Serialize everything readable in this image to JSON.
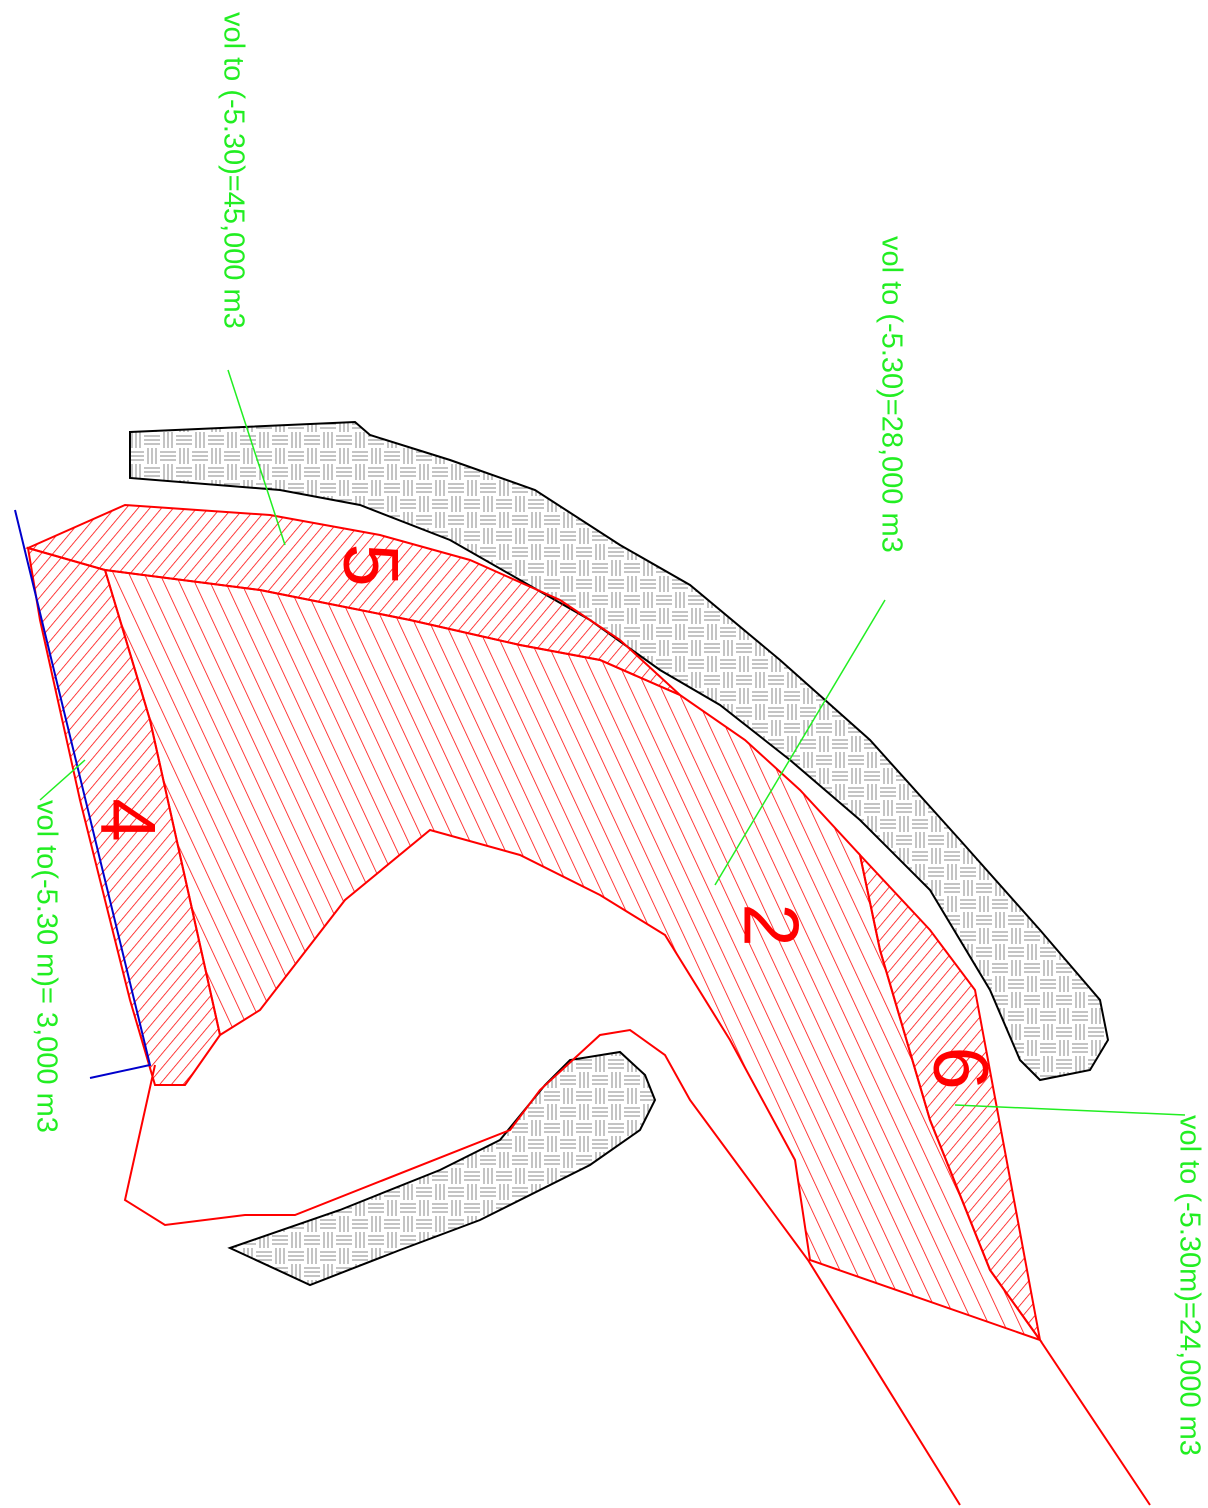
{
  "annotations": [
    "vol to (-5.30)=45,000 m3",
    "vol to (-5.30)=28,000 m3",
    "vol to(-5.30 m)= 3,000 m3",
    "vol to (-5.30m)=24,000 m3"
  ],
  "zones": [
    "5",
    "4",
    "2",
    "6"
  ]
}
